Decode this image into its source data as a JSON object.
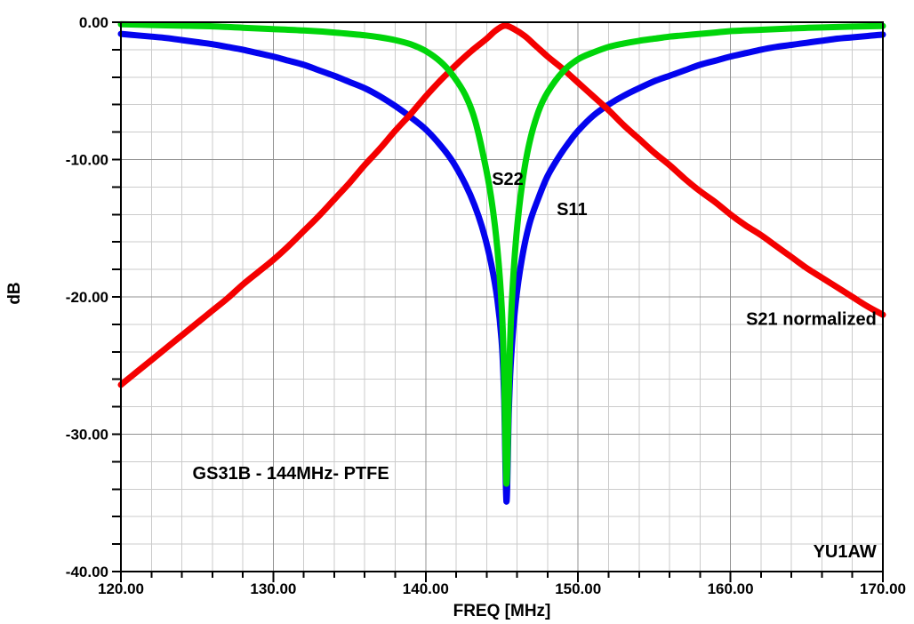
{
  "chart_data": {
    "type": "line",
    "title": "",
    "xlabel": "FREQ [MHz]",
    "ylabel": "dB",
    "xlim": [
      120,
      170
    ],
    "ylim": [
      -40,
      0
    ],
    "x_major_ticks": [
      120,
      130,
      140,
      150,
      160,
      170
    ],
    "x_tick_labels": [
      "120.00",
      "130.00",
      "140.00",
      "150.00",
      "160.00",
      "170.00"
    ],
    "x_minor_step": 2,
    "y_major_ticks": [
      0,
      -10,
      -20,
      -30,
      -40
    ],
    "y_tick_labels": [
      "0.00",
      "-10.00",
      "-20.00",
      "-30.00",
      "-40.00"
    ],
    "y_minor_step": 2,
    "grid": true,
    "legend_position": "inline-annotations",
    "colors": {
      "s11": "#0404ee",
      "s21": "#f40000",
      "s22": "#00d50a",
      "grid_minor": "#cbcbcb",
      "grid_major": "#919191",
      "axis": "#000000",
      "text": "#000000",
      "background": "#ffffff"
    },
    "series": [
      {
        "key": "s11",
        "name": "S11",
        "color": "#0404ee",
        "points": [
          [
            120,
            -0.85
          ],
          [
            121,
            -0.95
          ],
          [
            122,
            -1.05
          ],
          [
            123,
            -1.15
          ],
          [
            124,
            -1.3
          ],
          [
            125,
            -1.45
          ],
          [
            126,
            -1.6
          ],
          [
            127,
            -1.8
          ],
          [
            128,
            -2.0
          ],
          [
            129,
            -2.25
          ],
          [
            130,
            -2.5
          ],
          [
            131,
            -2.8
          ],
          [
            132,
            -3.1
          ],
          [
            133,
            -3.5
          ],
          [
            134,
            -3.9
          ],
          [
            135,
            -4.35
          ],
          [
            136,
            -4.8
          ],
          [
            137,
            -5.4
          ],
          [
            138,
            -6.1
          ],
          [
            139,
            -6.9
          ],
          [
            140,
            -7.8
          ],
          [
            141,
            -9.0
          ],
          [
            141.8,
            -10.2
          ],
          [
            142.6,
            -11.8
          ],
          [
            143.2,
            -13.3
          ],
          [
            143.8,
            -15.3
          ],
          [
            144.3,
            -17.6
          ],
          [
            144.7,
            -20.2
          ],
          [
            145.0,
            -23.5
          ],
          [
            145.15,
            -27.5
          ],
          [
            145.3,
            -34.9
          ],
          [
            145.45,
            -28.5
          ],
          [
            145.6,
            -24.5
          ],
          [
            145.9,
            -20.5
          ],
          [
            146.3,
            -17.3
          ],
          [
            146.8,
            -14.7
          ],
          [
            147.4,
            -12.8
          ],
          [
            148,
            -11.2
          ],
          [
            148.8,
            -9.7
          ],
          [
            149.5,
            -8.6
          ],
          [
            150,
            -7.9
          ],
          [
            151,
            -6.8
          ],
          [
            152,
            -6.0
          ],
          [
            153,
            -5.35
          ],
          [
            154,
            -4.8
          ],
          [
            155,
            -4.3
          ],
          [
            156,
            -3.9
          ],
          [
            157,
            -3.5
          ],
          [
            158,
            -3.1
          ],
          [
            159,
            -2.8
          ],
          [
            160,
            -2.5
          ],
          [
            161,
            -2.25
          ],
          [
            162,
            -2.0
          ],
          [
            163,
            -1.8
          ],
          [
            164,
            -1.65
          ],
          [
            165,
            -1.5
          ],
          [
            166,
            -1.35
          ],
          [
            167,
            -1.2
          ],
          [
            168,
            -1.1
          ],
          [
            169,
            -1.0
          ],
          [
            170,
            -0.9
          ]
        ]
      },
      {
        "key": "s21",
        "name": "S21 normalized",
        "color": "#f40000",
        "points": [
          [
            120,
            -26.4
          ],
          [
            121,
            -25.5
          ],
          [
            122,
            -24.6
          ],
          [
            123,
            -23.7
          ],
          [
            124,
            -22.8
          ],
          [
            125,
            -21.9
          ],
          [
            126,
            -21.0
          ],
          [
            127,
            -20.1
          ],
          [
            128,
            -19.1
          ],
          [
            129,
            -18.2
          ],
          [
            130,
            -17.3
          ],
          [
            131,
            -16.3
          ],
          [
            132,
            -15.2
          ],
          [
            133,
            -14.1
          ],
          [
            134,
            -12.9
          ],
          [
            135,
            -11.7
          ],
          [
            136,
            -10.4
          ],
          [
            137,
            -9.2
          ],
          [
            138,
            -7.9
          ],
          [
            139,
            -6.7
          ],
          [
            140,
            -5.4
          ],
          [
            141,
            -4.2
          ],
          [
            142,
            -3.1
          ],
          [
            143,
            -2.1
          ],
          [
            144,
            -1.2
          ],
          [
            144.6,
            -0.6
          ],
          [
            145.2,
            -0.25
          ],
          [
            145.8,
            -0.5
          ],
          [
            146.5,
            -1.0
          ],
          [
            147.2,
            -1.7
          ],
          [
            148,
            -2.5
          ],
          [
            149,
            -3.4
          ],
          [
            150,
            -4.4
          ],
          [
            151,
            -5.4
          ],
          [
            152,
            -6.4
          ],
          [
            153,
            -7.5
          ],
          [
            154,
            -8.5
          ],
          [
            155,
            -9.5
          ],
          [
            156,
            -10.4
          ],
          [
            157,
            -11.4
          ],
          [
            158,
            -12.3
          ],
          [
            159,
            -13.1
          ],
          [
            160,
            -14.0
          ],
          [
            161,
            -14.8
          ],
          [
            162,
            -15.5
          ],
          [
            163,
            -16.3
          ],
          [
            164,
            -17.1
          ],
          [
            165,
            -17.9
          ],
          [
            166,
            -18.6
          ],
          [
            167,
            -19.3
          ],
          [
            168,
            -20.0
          ],
          [
            169,
            -20.7
          ],
          [
            170,
            -21.3
          ]
        ]
      },
      {
        "key": "s22",
        "name": "S22",
        "color": "#00d50a",
        "points": [
          [
            120,
            -0.15
          ],
          [
            122,
            -0.2
          ],
          [
            124,
            -0.25
          ],
          [
            126,
            -0.3
          ],
          [
            128,
            -0.4
          ],
          [
            130,
            -0.5
          ],
          [
            132,
            -0.6
          ],
          [
            134,
            -0.75
          ],
          [
            135,
            -0.85
          ],
          [
            136,
            -0.95
          ],
          [
            137,
            -1.1
          ],
          [
            138,
            -1.3
          ],
          [
            139,
            -1.6
          ],
          [
            140,
            -2.1
          ],
          [
            141,
            -2.9
          ],
          [
            141.8,
            -3.9
          ],
          [
            142.6,
            -5.3
          ],
          [
            143.2,
            -7.0
          ],
          [
            143.8,
            -9.8
          ],
          [
            144.3,
            -12.8
          ],
          [
            144.7,
            -16.5
          ],
          [
            145.0,
            -21.0
          ],
          [
            145.15,
            -26.0
          ],
          [
            145.3,
            -33.6
          ],
          [
            145.45,
            -27.0
          ],
          [
            145.6,
            -21.5
          ],
          [
            145.9,
            -16.2
          ],
          [
            146.3,
            -12.0
          ],
          [
            146.8,
            -8.8
          ],
          [
            147.4,
            -6.5
          ],
          [
            148,
            -5.1
          ],
          [
            149,
            -3.6
          ],
          [
            150,
            -2.7
          ],
          [
            151,
            -2.2
          ],
          [
            152,
            -1.8
          ],
          [
            153,
            -1.55
          ],
          [
            154,
            -1.35
          ],
          [
            155,
            -1.2
          ],
          [
            156,
            -1.05
          ],
          [
            157,
            -0.95
          ],
          [
            158,
            -0.85
          ],
          [
            159,
            -0.75
          ],
          [
            160,
            -0.65
          ],
          [
            162,
            -0.55
          ],
          [
            164,
            -0.45
          ],
          [
            166,
            -0.38
          ],
          [
            168,
            -0.32
          ],
          [
            170,
            -0.27
          ]
        ]
      }
    ],
    "annotations": [
      {
        "text": "S22",
        "f": 145.38,
        "db": -11.4,
        "anchor": "middle"
      },
      {
        "text": "S11",
        "f": 149.6,
        "db": -13.6,
        "anchor": "middle"
      },
      {
        "text": "S21 normalized",
        "f": 165.3,
        "db": -21.6,
        "anchor": "middle"
      },
      {
        "text": "GS31B - 144MHz- PTFE",
        "f": 124.7,
        "db": -32.8,
        "anchor": "start"
      },
      {
        "text": "YU1AW",
        "f": 167.5,
        "db": -38.5,
        "anchor": "middle"
      }
    ]
  }
}
